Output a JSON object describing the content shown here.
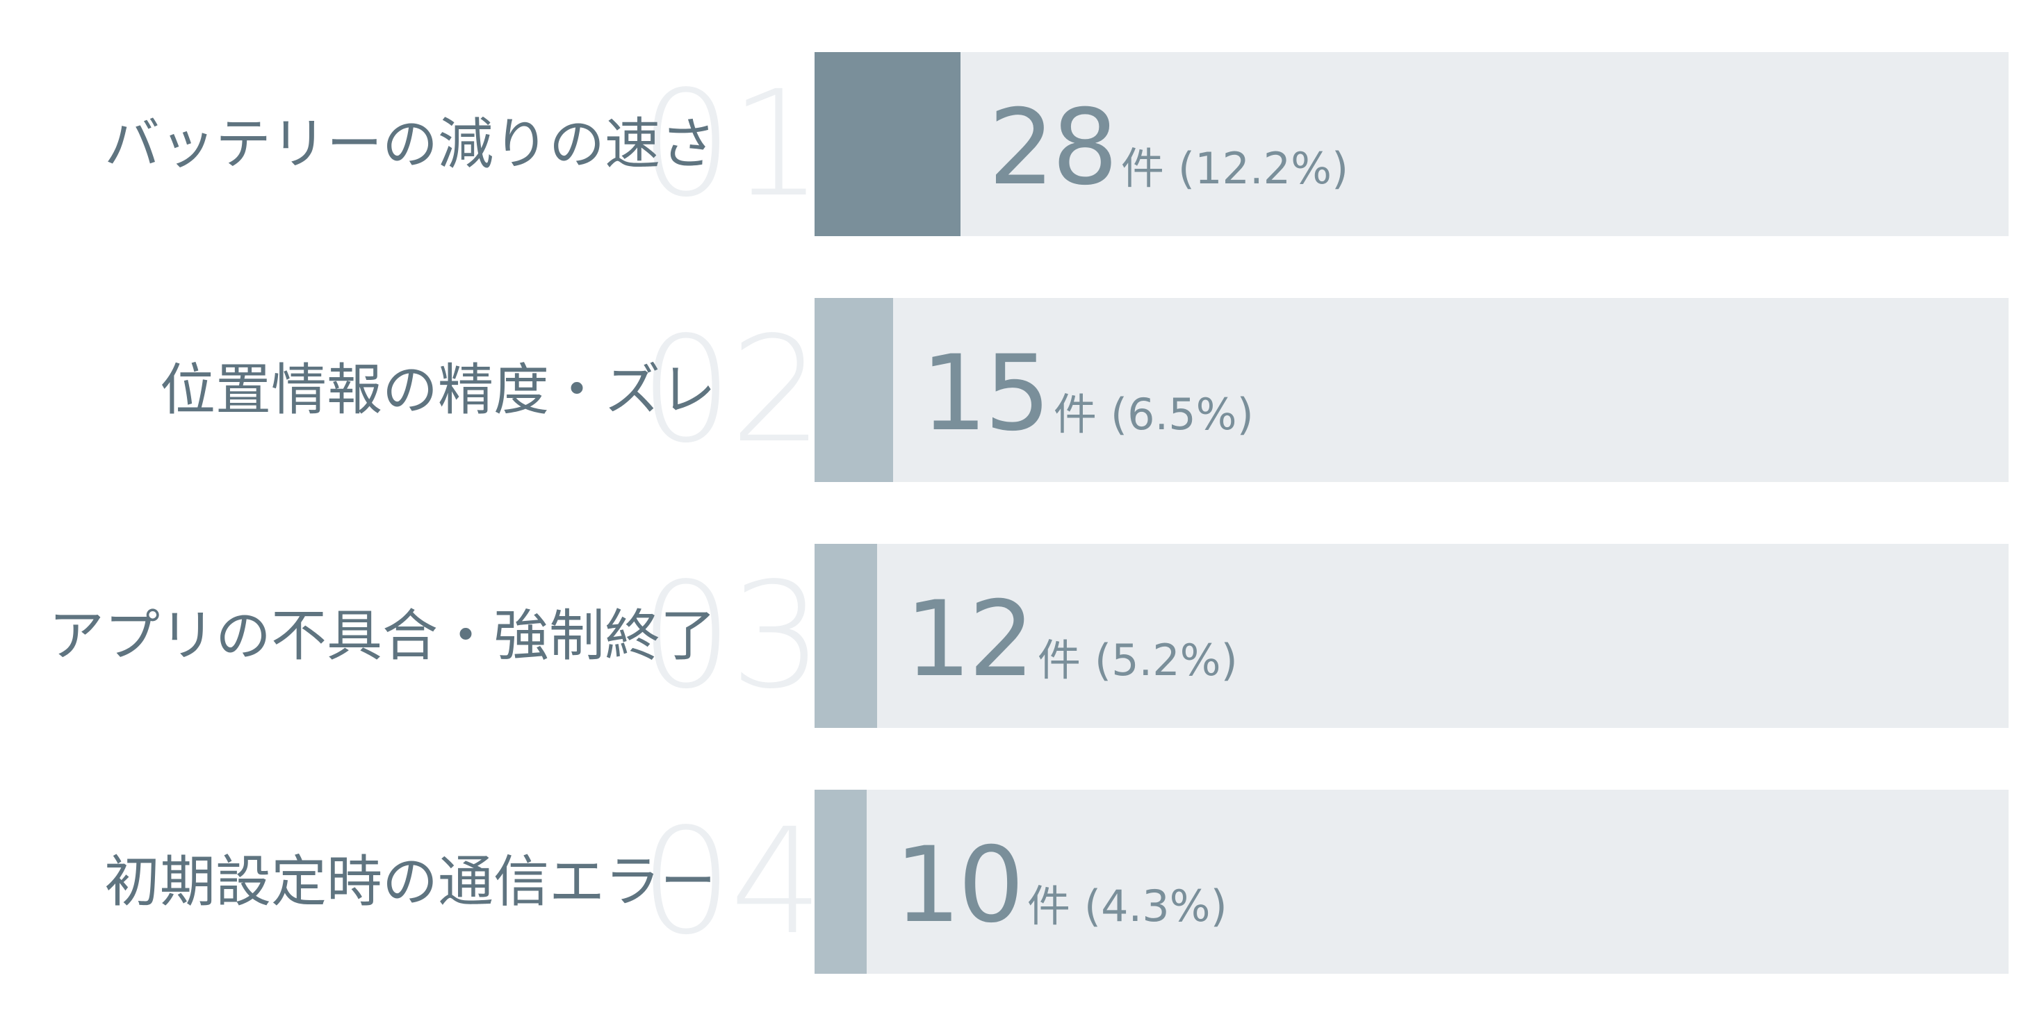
{
  "chart_data": {
    "type": "bar",
    "orientation": "horizontal",
    "categories": [
      "バッテリーの減りの速さ",
      "位置情報の精度・ズレ",
      "アプリの不具合・強制終了",
      "初期設定時の通信エラー"
    ],
    "ranks": [
      "01",
      "02",
      "03",
      "04"
    ],
    "values": [
      28,
      15,
      12,
      10
    ],
    "unit": "件",
    "percents": [
      "(12.2%)",
      "(6.5%)",
      "(5.2%)",
      "(4.3%)"
    ],
    "xlim": [
      0,
      229
    ],
    "colors": {
      "highlight": "#7a8f9a",
      "normal": "#b0bfc7",
      "track": "#eaedf0",
      "label": "#5f7480",
      "rank": "#eceff2"
    }
  }
}
